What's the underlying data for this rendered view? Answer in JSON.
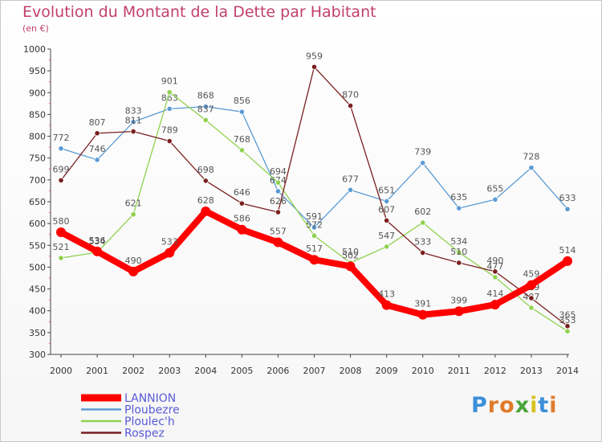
{
  "title": "Evolution du Montant de la Dette par Habitant",
  "subtitle": "(en €)",
  "logo": {
    "letters": [
      "P",
      "r",
      "o",
      "x",
      "i",
      "t",
      "i"
    ],
    "colors": [
      "#3c8fd8",
      "#e07b2a",
      "#e07b2a",
      "#4aa33a",
      "#d7c21e",
      "#3c8fd8",
      "#e07b2a"
    ]
  },
  "chart_data": {
    "type": "line",
    "title": "Evolution du Montant de la Dette par Habitant",
    "ylabel": "(en €)",
    "xlabel": "",
    "x": [
      "2000",
      "2001",
      "2002",
      "2003",
      "2004",
      "2005",
      "2006",
      "2007",
      "2008",
      "2009",
      "2010",
      "2011",
      "2012",
      "2013",
      "2014"
    ],
    "ylim": [
      300,
      1000
    ],
    "ytick_step": 50,
    "grid": false,
    "legend": "bottom-left",
    "series": [
      {
        "name": "LANNION",
        "color": "#ff0000",
        "values": [
          580,
          536,
          490,
          533,
          628,
          586,
          557,
          517,
          502,
          413,
          391,
          399,
          414,
          459,
          514
        ]
      },
      {
        "name": "Ploubezre",
        "color": "#5b9bd5",
        "values": [
          772,
          746,
          833,
          863,
          868,
          856,
          674,
          591,
          677,
          651,
          739,
          635,
          655,
          728,
          633
        ]
      },
      {
        "name": "Ploulec'h",
        "color": "#8fd14f",
        "values": [
          521,
          534,
          621,
          901,
          837,
          768,
          694,
          572,
          510,
          547,
          602,
          534,
          477,
          407,
          353
        ]
      },
      {
        "name": "Rospez",
        "color": "#7a1f1f",
        "values": [
          699,
          807,
          811,
          789,
          698,
          646,
          626,
          959,
          870,
          607,
          533,
          510,
          490,
          429,
          365
        ]
      }
    ]
  }
}
